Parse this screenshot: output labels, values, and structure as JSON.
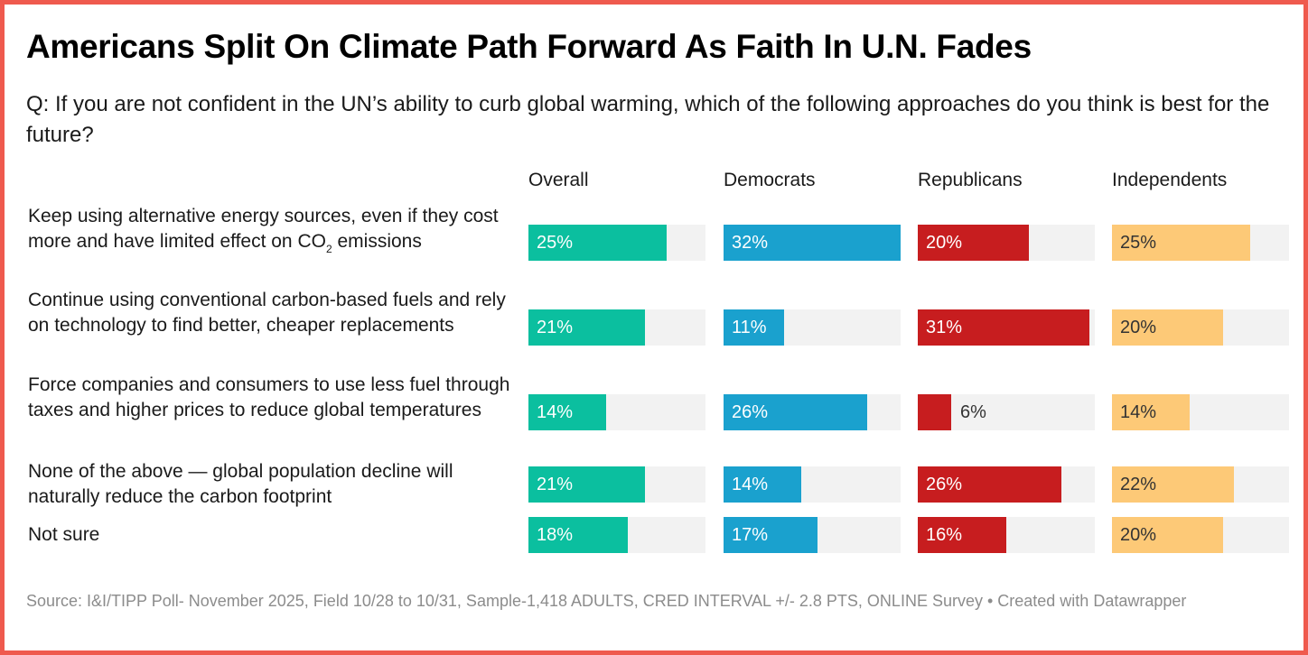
{
  "header": {
    "title": "Americans Split On Climate Path Forward As Faith In U.N. Fades",
    "subtitle": "Q: If you are not confident in the UN’s ability to curb global warming, which of the following approaches do you think is best for the future?"
  },
  "footer": {
    "source": "Source: I&I/TIPP Poll- November 2025, Field 10/28 to 10/31, Sample-1,418 ADULTS, CRED INTERVAL +/- 2.8 PTS, ONLINE Survey • Created with Datawrapper"
  },
  "chart_data": {
    "type": "bar",
    "orientation": "horizontal",
    "layout": "small-multiples",
    "title": "Americans Split On Climate Path Forward As Faith In U.N. Fades",
    "subtitle": "Q: If you are not confident in the UN’s ability to curb global warming, which of the following approaches do you think is best for the future?",
    "unit": "%",
    "xlim": [
      0,
      32
    ],
    "grid": false,
    "categories": [
      "Keep using alternative energy sources, even if they cost more and have limited effect on CO2 emissions",
      "Continue using conventional carbon-based fuels and rely on technology to find better, cheaper replacements",
      "Force companies and consumers to use less fuel through taxes and higher prices to reduce global temperatures",
      "None of the above — global population decline will naturally reduce the carbon footprint",
      "Not sure"
    ],
    "category_labels_display": [
      {
        "pre": "Keep using alternative energy sources, even if they cost more and have limited effect on CO",
        "sub": "2",
        "post": " emissions"
      },
      {
        "pre": "Continue using conventional carbon-based fuels and rely on technology to find better, cheaper replacements",
        "sub": "",
        "post": ""
      },
      {
        "pre": "Force companies and consumers to use less fuel through taxes and higher prices to reduce global temperatures",
        "sub": "",
        "post": ""
      },
      {
        "pre": "None of the above — global population decline will naturally reduce the carbon footprint",
        "sub": "",
        "post": ""
      },
      {
        "pre": "Not sure",
        "sub": "",
        "post": ""
      }
    ],
    "series": [
      {
        "name": "Overall",
        "color": "#0bbf9f",
        "label_color": "#ffffff",
        "values": [
          25,
          21,
          14,
          21,
          18
        ]
      },
      {
        "name": "Democrats",
        "color": "#1aa1ce",
        "label_color": "#ffffff",
        "values": [
          32,
          11,
          26,
          14,
          17
        ]
      },
      {
        "name": "Republicans",
        "color": "#c71d1f",
        "label_color": "#ffffff",
        "values": [
          20,
          31,
          6,
          26,
          16
        ]
      },
      {
        "name": "Independents",
        "color": "#fdc977",
        "label_color": "#333333",
        "values": [
          25,
          20,
          14,
          22,
          20
        ]
      }
    ],
    "track_color": "#f2f2f2"
  }
}
